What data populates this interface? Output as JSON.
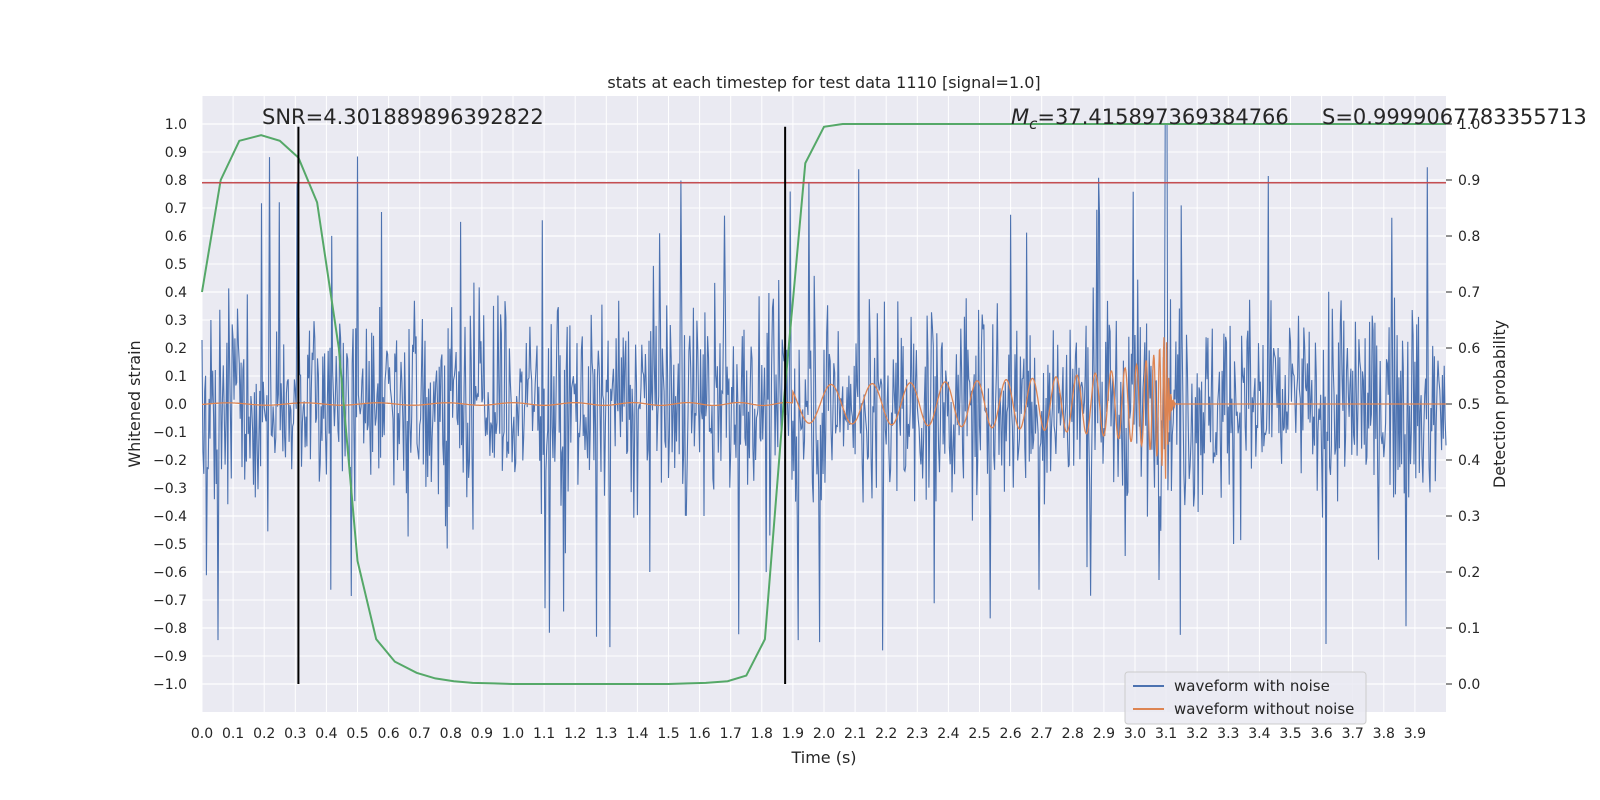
{
  "chart_data": {
    "type": "line",
    "title": "stats at each timestep for test data 1110 [signal=1.0]",
    "xlabel": "Time (s)",
    "ylabel": "Whitened strain",
    "y2label": "Detection probability",
    "xlim": [
      0.0,
      4.0
    ],
    "ylim": [
      -1.1,
      1.1
    ],
    "y2lim": [
      -0.05,
      1.05
    ],
    "grid": true,
    "x_ticks": [
      "0.0",
      "0.1",
      "0.2",
      "0.3",
      "0.4",
      "0.5",
      "0.6",
      "0.7",
      "0.8",
      "0.9",
      "1.0",
      "1.1",
      "1.2",
      "1.3",
      "1.4",
      "1.5",
      "1.6",
      "1.7",
      "1.8",
      "1.9",
      "2.0",
      "2.1",
      "2.2",
      "2.3",
      "2.4",
      "2.5",
      "2.6",
      "2.7",
      "2.8",
      "2.9",
      "3.0",
      "3.1",
      "3.2",
      "3.3",
      "3.4",
      "3.5",
      "3.6",
      "3.7",
      "3.8",
      "3.9"
    ],
    "y_ticks": [
      "1.0",
      "0.9",
      "0.8",
      "0.7",
      "0.6",
      "0.5",
      "0.4",
      "0.3",
      "0.2",
      "0.1",
      "0.0",
      "−0.1",
      "−0.2",
      "−0.3",
      "−0.4",
      "−0.5",
      "−0.6",
      "−0.7",
      "−0.8",
      "−0.9",
      "−1.0"
    ],
    "y2_ticks": [
      "1.0",
      "0.9",
      "0.8",
      "0.7",
      "0.6",
      "0.5",
      "0.4",
      "0.3",
      "0.2",
      "0.1",
      "0.0"
    ],
    "annotations": {
      "snr": "SNR=4.301889896392822",
      "mc_symbol": "M",
      "mc_sub": "c",
      "mc_value": "=37.415897369384766",
      "s": "S=0.9999067783355713"
    },
    "legend": {
      "position": "lower right",
      "entries": [
        "waveform with noise",
        "waveform without noise"
      ]
    },
    "colors": {
      "noisy": "#4c72b0",
      "clean": "#dd8452",
      "probability": "#55a868",
      "threshold": "#c44e52",
      "markers": "#000000",
      "plot_bg": "#eaeaf2",
      "grid": "#ffffff"
    },
    "vertical_markers_x": [
      0.31,
      1.875
    ],
    "threshold_y": 0.79,
    "series": [
      {
        "name": "waveform with noise",
        "description": "noisy whitened strain, amplitude mostly within ±0.6 with spikes to ±1.0; largest spike near 3.1 s"
      },
      {
        "name": "waveform without noise",
        "chirp": {
          "start": 1.9,
          "merger": 3.1,
          "peak_amplitude": 0.27
        }
      },
      {
        "name": "detection probability",
        "axis": "right",
        "x": [
          0.0,
          0.06,
          0.12,
          0.19,
          0.25,
          0.31,
          0.37,
          0.44,
          0.5,
          0.56,
          0.62,
          0.69,
          0.75,
          0.81,
          0.87,
          0.94,
          1.0,
          1.06,
          1.12,
          1.19,
          1.25,
          1.31,
          1.37,
          1.44,
          1.5,
          1.56,
          1.62,
          1.69,
          1.75,
          1.81,
          1.87,
          1.94,
          2.0,
          2.06,
          2.12,
          2.19,
          2.25,
          2.31,
          2.37,
          2.44,
          2.5,
          2.56,
          2.62,
          2.69,
          2.75,
          2.81,
          2.87,
          2.94,
          3.0,
          3.06,
          3.12,
          3.19,
          3.25,
          3.31,
          3.37,
          3.44,
          3.5,
          3.56,
          3.62,
          3.69,
          3.75,
          3.81,
          3.87,
          3.94,
          4.0
        ],
        "values": [
          0.7,
          0.9,
          0.97,
          0.98,
          0.97,
          0.94,
          0.86,
          0.6,
          0.22,
          0.08,
          0.04,
          0.02,
          0.01,
          0.005,
          0.002,
          0.001,
          0.0,
          0.0,
          0.0,
          0.0,
          0.0,
          0.0,
          0.0,
          0.0,
          0.0,
          0.001,
          0.002,
          0.005,
          0.015,
          0.08,
          0.5,
          0.93,
          0.995,
          1.0,
          1.0,
          1.0,
          1.0,
          1.0,
          1.0,
          1.0,
          1.0,
          1.0,
          1.0,
          1.0,
          1.0,
          1.0,
          1.0,
          1.0,
          1.0,
          1.0,
          1.0,
          1.0,
          1.0,
          1.0,
          1.0,
          1.0,
          1.0,
          1.0,
          1.0,
          1.0,
          1.0,
          1.0,
          1.0,
          1.0,
          1.0
        ]
      }
    ]
  }
}
